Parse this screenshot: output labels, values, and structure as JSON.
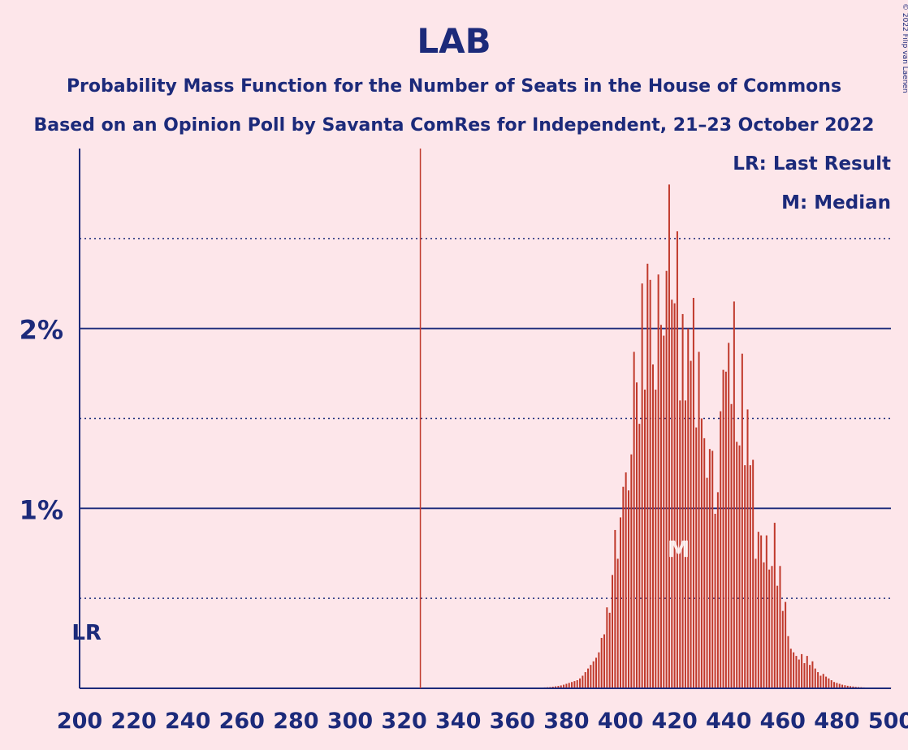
{
  "chart_data": {
    "type": "bar",
    "title": "LAB",
    "subtitle1": "Probability Mass Function for the Number of Seats in the House of Commons",
    "subtitle2": "Based on an Opinion Poll by Savanta ComRes for Independent, 21–23 October 2022",
    "copyright": "© 2022 Filip van Laenen",
    "legend": [
      "LR: Last Result",
      "M: Median"
    ],
    "last_result_marker": "LR",
    "median_marker": "M",
    "majority_line": 326,
    "last_result": 202,
    "median": 420,
    "xlim": [
      200,
      500
    ],
    "ylim": [
      0,
      3.0
    ],
    "x_ticks": [
      200,
      220,
      240,
      260,
      280,
      300,
      320,
      340,
      360,
      380,
      400,
      420,
      440,
      460,
      480,
      500
    ],
    "x_tick_labels": [
      "200",
      "220",
      "240",
      "260",
      "280",
      "300",
      "320",
      "340",
      "360",
      "380",
      "400",
      "420",
      "440",
      "460",
      "480",
      "500"
    ],
    "y_major_gridlines": [
      1,
      2
    ],
    "y_minor_gridlines": [
      0.5,
      1.5,
      2.5
    ],
    "y_tick_labels": [
      "1%",
      "2%"
    ],
    "colors": {
      "bar": "#c0392b",
      "axis": "#1c2a7a",
      "background": "#fde6ea"
    },
    "seats": [
      370,
      371,
      372,
      373,
      374,
      375,
      376,
      377,
      378,
      379,
      380,
      381,
      382,
      383,
      384,
      385,
      386,
      387,
      388,
      389,
      390,
      391,
      392,
      393,
      394,
      395,
      396,
      397,
      398,
      399,
      400,
      401,
      402,
      403,
      404,
      405,
      406,
      407,
      408,
      409,
      410,
      411,
      412,
      413,
      414,
      415,
      416,
      417,
      418,
      419,
      420,
      421,
      422,
      423,
      424,
      425,
      426,
      427,
      428,
      429,
      430,
      431,
      432,
      433,
      434,
      435,
      436,
      437,
      438,
      439,
      440,
      441,
      442,
      443,
      444,
      445,
      446,
      447,
      448,
      449,
      450,
      451,
      452,
      453,
      454,
      455,
      456,
      457,
      458,
      459,
      460,
      461,
      462,
      463,
      464,
      465,
      466,
      467,
      468,
      469,
      470,
      471,
      472,
      473,
      474,
      475,
      476,
      477,
      478,
      479,
      480,
      481,
      482,
      483,
      484,
      485,
      486,
      487,
      488,
      489,
      490,
      491,
      492,
      493,
      494,
      495,
      496,
      497,
      498,
      499,
      500
    ],
    "values": [
      0.003,
      0.004,
      0.005,
      0.006,
      0.007,
      0.009,
      0.011,
      0.013,
      0.016,
      0.02,
      0.025,
      0.03,
      0.035,
      0.04,
      0.045,
      0.055,
      0.07,
      0.09,
      0.11,
      0.13,
      0.15,
      0.17,
      0.2,
      0.28,
      0.3,
      0.45,
      0.42,
      0.63,
      0.88,
      0.72,
      0.95,
      1.12,
      1.2,
      1.1,
      1.3,
      1.87,
      1.7,
      1.47,
      2.25,
      1.66,
      2.36,
      2.27,
      1.8,
      1.66,
      2.3,
      2.02,
      1.96,
      2.32,
      2.8,
      2.16,
      2.14,
      2.54,
      1.6,
      2.08,
      1.6,
      2.0,
      1.82,
      2.17,
      1.45,
      1.87,
      1.5,
      1.39,
      1.17,
      1.33,
      1.32,
      0.97,
      1.09,
      1.54,
      1.77,
      1.76,
      1.92,
      1.58,
      2.15,
      1.37,
      1.35,
      1.86,
      1.24,
      1.55,
      1.24,
      1.27,
      0.72,
      0.87,
      0.85,
      0.7,
      0.85,
      0.66,
      0.68,
      0.92,
      0.57,
      0.68,
      0.43,
      0.48,
      0.29,
      0.22,
      0.2,
      0.18,
      0.16,
      0.19,
      0.14,
      0.18,
      0.13,
      0.15,
      0.11,
      0.09,
      0.07,
      0.08,
      0.065,
      0.055,
      0.045,
      0.035,
      0.03,
      0.025,
      0.02,
      0.017,
      0.014,
      0.012,
      0.01,
      0.008,
      0.007,
      0.006,
      0.005,
      0.004,
      0.004,
      0.003,
      0.003,
      0.002,
      0.002,
      0.002,
      0.001,
      0.001,
      0.001
    ]
  }
}
